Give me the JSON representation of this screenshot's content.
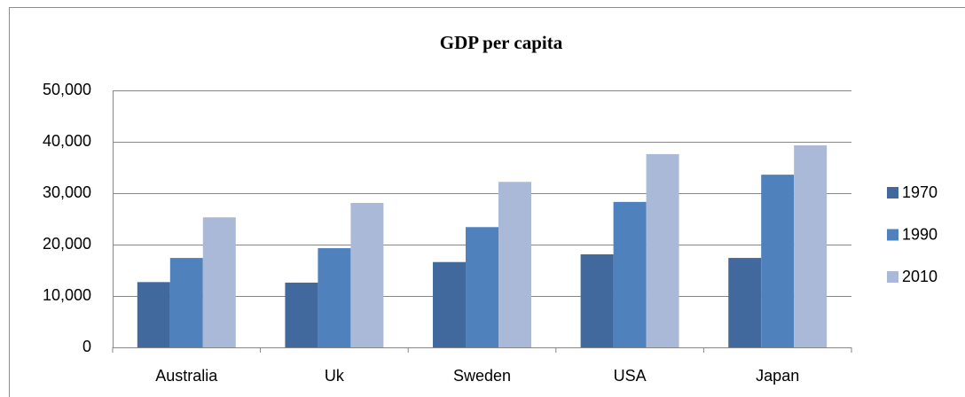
{
  "chart_data": {
    "type": "bar",
    "title": "GDP per capita",
    "categories": [
      "Australia",
      "Uk",
      "Sweden",
      "USA",
      "Japan"
    ],
    "series": [
      {
        "name": "1970",
        "color": "#41699e",
        "values": [
          12700,
          12600,
          16600,
          18100,
          17400
        ]
      },
      {
        "name": "1990",
        "color": "#4f81bd",
        "values": [
          17400,
          19300,
          23400,
          28300,
          33600
        ]
      },
      {
        "name": "2010",
        "color": "#aab9d8",
        "values": [
          25300,
          28100,
          32200,
          37600,
          39300
        ]
      }
    ],
    "ylim": [
      0,
      50000
    ],
    "yticks": [
      0,
      {
        "value": 10000,
        "label": "10,000"
      },
      {
        "value": 20000,
        "label": "20,000"
      },
      {
        "value": 30000,
        "label": "30,000"
      },
      {
        "value": 40000,
        "label": "40,000"
      },
      {
        "value": 50000,
        "label": "50,000"
      }
    ],
    "grid": true,
    "legend": "right"
  }
}
